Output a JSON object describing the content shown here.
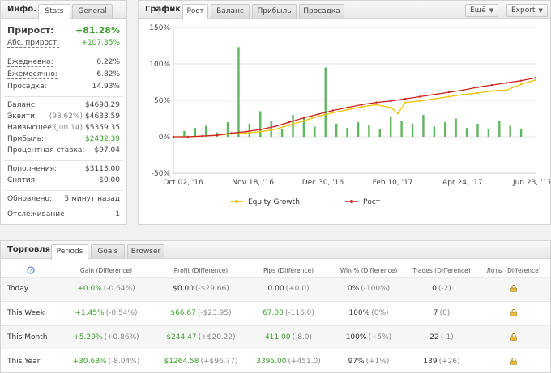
{
  "info": {
    "title": "Инфо.",
    "tabs": [
      "Stats",
      "General"
    ],
    "growth": {
      "label": "Прирост:",
      "value": "+81.28%"
    },
    "abs_growth": {
      "label": "Абс. прирост:",
      "value": "+107.35%"
    },
    "daily": {
      "label": "Ежедневно:",
      "value": "0.22%"
    },
    "monthly": {
      "label": "Ежемесячно:",
      "value": "6.82%"
    },
    "drawdown": {
      "label": "Просадка:",
      "value": "14.93%"
    },
    "balance": {
      "label": "Баланс:",
      "value": "$4698.29"
    },
    "equity": {
      "label": "Эквити:",
      "pre": "(98.62%)",
      "value": "$4633.59"
    },
    "highest": {
      "label": "Наивысшее:",
      "pre": "(Jun 14)",
      "value": "$5359.35"
    },
    "profit": {
      "label": "Прибыль:",
      "value": "$2432.39"
    },
    "interest": {
      "label": "Процентная ставка:",
      "value": "$97.04"
    },
    "deposits": {
      "label": "Пополнения:",
      "value": "$3113.00"
    },
    "withdrawals": {
      "label": "Снятия:",
      "value": "$0.00"
    },
    "updated": {
      "label": "Обновлено:",
      "value": "5 минут назад"
    },
    "tracking": {
      "label": "Отслеживание",
      "value": "1"
    }
  },
  "chart_panel": {
    "title": "График",
    "tabs": [
      "Рост",
      "Баланс",
      "Прибыль",
      "Просадка"
    ],
    "more_button": "Ещё",
    "export_button": "Export"
  },
  "chart_data": {
    "type": "line",
    "y_ticks": [
      "150%",
      "100%",
      "50%",
      "0%",
      "-50%"
    ],
    "ylim": [
      -50,
      150
    ],
    "x_ticks": [
      "Oct 02, '16",
      "Nov 18, '16",
      "Dec 30, '16",
      "Feb 10, '17",
      "Apr 24, '17",
      "Jun 23, '17"
    ],
    "legend_position": "bottom",
    "series": [
      {
        "name": "Equity Growth",
        "color": "#f2c200",
        "kind": "line",
        "x": [
          0,
          0.04,
          0.08,
          0.12,
          0.16,
          0.2,
          0.24,
          0.28,
          0.32,
          0.36,
          0.4,
          0.44,
          0.48,
          0.52,
          0.56,
          0.6,
          0.62,
          0.64,
          0.68,
          0.72,
          0.76,
          0.8,
          0.84,
          0.88,
          0.92,
          0.96,
          1.0
        ],
        "y": [
          0,
          0,
          1,
          2,
          4,
          5,
          7,
          10,
          16,
          22,
          28,
          33,
          37,
          41,
          44,
          40,
          32,
          47,
          49,
          52,
          55,
          58,
          60,
          63,
          64,
          72,
          78
        ]
      },
      {
        "name": "Рост",
        "color": "#cc2222",
        "kind": "line",
        "x": [
          0,
          0.04,
          0.08,
          0.12,
          0.16,
          0.2,
          0.24,
          0.28,
          0.32,
          0.36,
          0.4,
          0.44,
          0.48,
          0.52,
          0.56,
          0.6,
          0.64,
          0.68,
          0.72,
          0.76,
          0.8,
          0.84,
          0.88,
          0.92,
          0.96,
          1.0
        ],
        "y": [
          0,
          0,
          1,
          2,
          5,
          7,
          10,
          14,
          20,
          26,
          31,
          36,
          40,
          44,
          47,
          49,
          52,
          55,
          58,
          61,
          64,
          68,
          71,
          74,
          77,
          81
        ]
      },
      {
        "name": "daily",
        "color": "#5cb85c",
        "kind": "bar",
        "x": [
          0.03,
          0.06,
          0.09,
          0.12,
          0.15,
          0.18,
          0.21,
          0.24,
          0.27,
          0.3,
          0.33,
          0.36,
          0.39,
          0.42,
          0.45,
          0.48,
          0.51,
          0.54,
          0.57,
          0.6,
          0.63,
          0.66,
          0.69,
          0.72,
          0.75,
          0.78,
          0.81,
          0.84,
          0.87,
          0.9,
          0.93,
          0.96
        ],
        "y": [
          8,
          12,
          15,
          6,
          20,
          123,
          18,
          35,
          22,
          10,
          30,
          25,
          14,
          95,
          18,
          12,
          20,
          16,
          10,
          28,
          22,
          18,
          30,
          14,
          20,
          25,
          12,
          18,
          10,
          22,
          15,
          10
        ]
      }
    ]
  },
  "trade": {
    "title": "Торговля",
    "tabs": [
      "Periods",
      "Goals",
      "Browser"
    ],
    "headers": [
      "Gain (Difference)",
      "Profit (Difference)",
      "Pips (Difference)",
      "Win % (Difference)",
      "Trades (Difference)",
      "Лоты (Difference)"
    ],
    "info_icon": "info-circle-icon",
    "rows": [
      {
        "label": "Today",
        "gain": "+0.0%",
        "gain_d": "(-0.64%)",
        "profit": "$0.00",
        "profit_d": "(-$29.66)",
        "pips": "0.00",
        "pips_d": "(+0.0)",
        "win": "0%",
        "win_d": "(-100%)",
        "trades": "0",
        "trades_d": "(-2)"
      },
      {
        "label": "This Week",
        "gain": "+1.45%",
        "gain_d": "(-0.54%)",
        "profit": "$66.67",
        "profit_d": "(-$23.95)",
        "pips": "67.00",
        "pips_d": "(-116.0)",
        "win": "100%",
        "win_d": "(0%)",
        "trades": "7",
        "trades_d": "(0)"
      },
      {
        "label": "This Month",
        "gain": "+5.29%",
        "gain_d": "(+0.86%)",
        "profit": "$244.47",
        "profit_d": "(+$20.22)",
        "pips": "411.00",
        "pips_d": "(-8.0)",
        "win": "100%",
        "win_d": "(+5%)",
        "trades": "22",
        "trades_d": "(-1)"
      },
      {
        "label": "This Year",
        "gain": "+30.68%",
        "gain_d": "(-8.04%)",
        "profit": "$1264.58",
        "profit_d": "(+$96.77)",
        "pips": "3395.00",
        "pips_d": "(+451.0)",
        "win": "97%",
        "win_d": "(+1%)",
        "trades": "139",
        "trades_d": "(+26)"
      }
    ]
  }
}
